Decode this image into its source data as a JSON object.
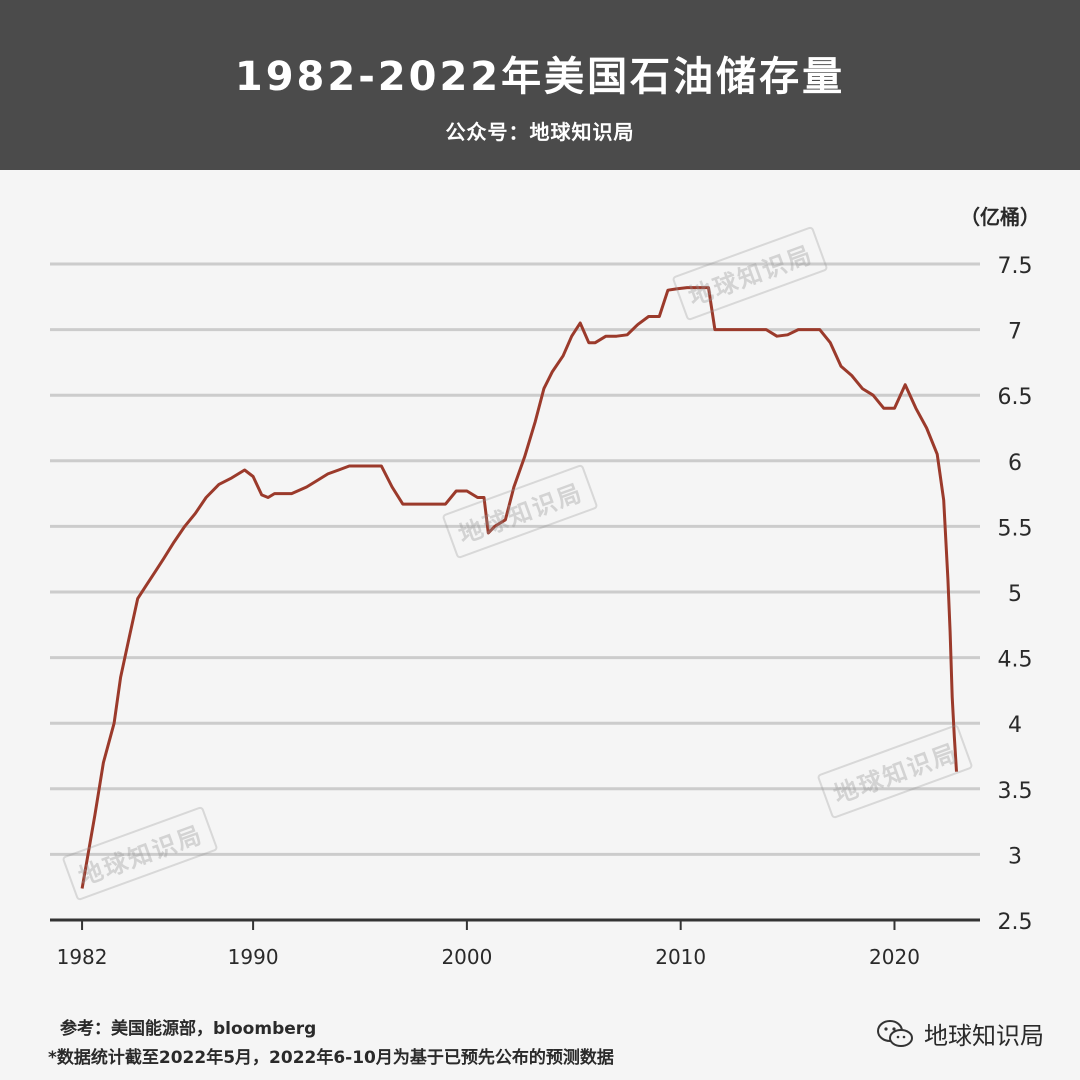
{
  "header": {
    "title": "1982-2022年美国石油储存量",
    "subtitle": "公众号：地球知识局"
  },
  "watermark": "地球知识局",
  "footer": {
    "source": "参考：美国能源部，bloomberg",
    "note": "*数据统计截至2022年5月，2022年6-10月为基于已预先公布的预测数据",
    "brand": "地球知识局"
  },
  "colors": {
    "header_bg": "#4b4b4b",
    "line": "#9b3a2b",
    "grid": "#cccccc",
    "background": "#f5f5f5"
  },
  "chart_data": {
    "type": "line",
    "title": "1982-2022年美国石油储存量",
    "unit": "（亿桶）",
    "xlabel": "",
    "ylabel": "（亿桶）",
    "xlim": [
      1980.5,
      2024
    ],
    "ylim": [
      2.5,
      7.5
    ],
    "yticks": [
      2.5,
      3,
      3.5,
      4,
      4.5,
      5,
      5.5,
      6,
      6.5,
      7,
      7.5
    ],
    "ytick_labels": [
      "2.5",
      "3",
      "3.5",
      "4",
      "4.5",
      "5",
      "5.5",
      "6",
      "6.5",
      "7",
      "7.5"
    ],
    "xticks": [
      1982,
      1990,
      2000,
      2010,
      2020
    ],
    "xtick_labels": [
      "1982",
      "1990",
      "2000",
      "2010",
      "2020"
    ],
    "grid": true,
    "series": [
      {
        "x": [
          1982.0,
          1982.6,
          1983.0,
          1983.5,
          1983.8,
          1984.2,
          1984.6,
          1985.0,
          1985.4,
          1985.8,
          1986.3,
          1986.8,
          1987.3,
          1987.8,
          1988.4,
          1989.0,
          1989.6,
          1990.0,
          1990.4,
          1990.7,
          1991.0,
          1991.3,
          1991.8,
          1992.5,
          1993.0,
          1993.5,
          1994.0,
          1994.5,
          1995.0,
          1995.5,
          1996.0,
          1996.5,
          1997.0,
          1998.0,
          1999.0,
          1999.5,
          2000.0,
          2000.5,
          2000.8,
          2001.0,
          2001.3,
          2001.8,
          2002.2,
          2002.7,
          2003.2,
          2003.6,
          2004.0,
          2004.5,
          2004.9,
          2005.3,
          2005.7,
          2006.0,
          2006.5,
          2007.0,
          2007.5,
          2008.0,
          2008.5,
          2009.0,
          2009.4,
          2009.8,
          2010.3,
          2010.8,
          2011.3,
          2011.6,
          2012.5,
          2013.5,
          2014.0,
          2014.5,
          2015.0,
          2015.5,
          2016.5,
          2017.0,
          2017.5,
          2018.0,
          2018.5,
          2019.0,
          2019.5,
          2020.0,
          2020.5,
          2021.0,
          2021.5,
          2022.0,
          2022.3,
          2022.5,
          2022.6,
          2022.7,
          2022.8,
          2022.9
        ],
        "values": [
          2.74,
          3.3,
          3.7,
          4.0,
          4.35,
          4.65,
          4.95,
          5.05,
          5.15,
          5.25,
          5.38,
          5.5,
          5.6,
          5.72,
          5.82,
          5.87,
          5.93,
          5.88,
          5.74,
          5.72,
          5.75,
          5.75,
          5.75,
          5.8,
          5.85,
          5.9,
          5.93,
          5.96,
          5.96,
          5.96,
          5.96,
          5.8,
          5.67,
          5.67,
          5.67,
          5.77,
          5.77,
          5.72,
          5.72,
          5.45,
          5.5,
          5.55,
          5.8,
          6.03,
          6.3,
          6.55,
          6.68,
          6.8,
          6.95,
          7.05,
          6.9,
          6.9,
          6.95,
          6.95,
          6.96,
          7.04,
          7.1,
          7.1,
          7.3,
          7.31,
          7.32,
          7.32,
          7.32,
          7.0,
          7.0,
          7.0,
          7.0,
          6.95,
          6.96,
          7.0,
          7.0,
          6.9,
          6.72,
          6.65,
          6.55,
          6.5,
          6.4,
          6.4,
          6.58,
          6.4,
          6.25,
          6.05,
          5.7,
          5.1,
          4.7,
          4.2,
          3.9,
          3.63
        ]
      }
    ]
  }
}
